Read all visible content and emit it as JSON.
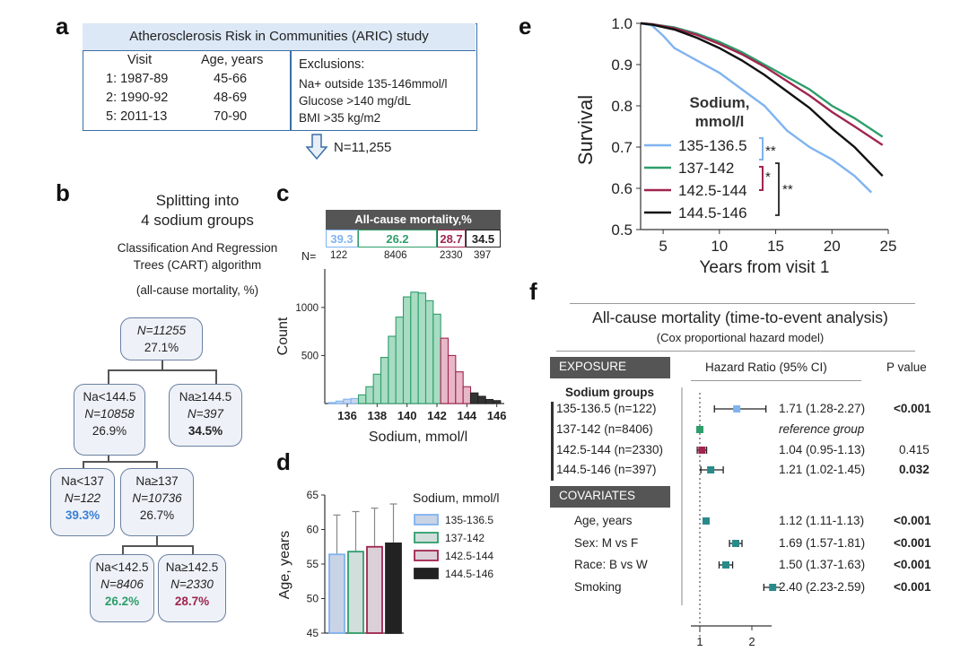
{
  "panel_a": {
    "label": "a",
    "title": "Atherosclerosis Risk in Communities (ARIC) study",
    "visit_header": "Visit",
    "age_header": "Age, years",
    "visits": [
      {
        "visit": "1: 1987-89",
        "age": "45-66"
      },
      {
        "visit": "2: 1990-92",
        "age": "48-69"
      },
      {
        "visit": "5: 2011-13",
        "age": "70-90"
      }
    ],
    "exclusions_header": "Exclusions:",
    "exclusions": [
      "Na+ outside 135-146mmol/l",
      "Glucose >140 mg/dL",
      "BMI >35 kg/m2"
    ],
    "n_total": "N=11,255"
  },
  "panel_b": {
    "label": "b",
    "title_line1": "Splitting into",
    "title_line2": "4 sodium groups",
    "algo_line1": "Classification And Regression",
    "algo_line2": "Trees  (CART) algorithm",
    "algo_line3": "(all-cause mortality, %)",
    "nodes": {
      "root": {
        "n": "N=11255",
        "pct": "27.1%"
      },
      "lt1445": {
        "cond": "Na<144.5",
        "n": "N=10858",
        "pct": "26.9%"
      },
      "ge1445": {
        "cond": "Na≥144.5",
        "n": "N=397",
        "pct": "34.5%"
      },
      "lt137": {
        "cond": "Na<137",
        "n": "N=122",
        "pct": "39.3%"
      },
      "ge137": {
        "cond": "Na≥137",
        "n": "N=10736",
        "pct": "26.7%"
      },
      "lt1425": {
        "cond": "Na<142.5",
        "n": "N=8406",
        "pct": "26.2%"
      },
      "ge1425": {
        "cond": "Na≥142.5",
        "n": "N=2330",
        "pct": "28.7%"
      }
    }
  },
  "panel_c": {
    "label": "c",
    "mortality_header": "All-cause mortality,%",
    "mortality": [
      "39.3",
      "26.2",
      "28.7",
      "34.5"
    ],
    "n_label": "N=",
    "n_values": [
      "122",
      "8406",
      "2330",
      "397"
    ],
    "colors": [
      "#7fb3f0",
      "#2e9e6b",
      "#a0254f",
      "#222222"
    ]
  },
  "panel_d": {
    "label": "d"
  },
  "panel_e": {
    "label": "e",
    "legend_title_line1": "Sodium,",
    "legend_title_line2": "mmol/l",
    "sig1": "**",
    "sig2": "*",
    "sig3": "**"
  },
  "panel_f": {
    "label": "f",
    "title": "All-cause mortality (time-to-event analysis)",
    "subtitle": "(Cox proportional hazard model)",
    "exposure_label": "EXPOSURE",
    "hr_header": "Hazard Ratio (95% CI)",
    "p_header": "P value",
    "sodium_groups_label": "Sodium groups",
    "covariates_label": "COVARIATES",
    "rows": [
      {
        "name": "135-136.5 (n=122)",
        "hr_text": "1.71 (1.28-2.27)",
        "p": "<0.001",
        "hr": 1.71,
        "lo": 1.28,
        "hi": 2.27,
        "color": "#7fb3f0"
      },
      {
        "name": "137-142 (n=8406)",
        "hr_text": "reference group",
        "p": "",
        "hr": 1.0,
        "lo": 1.0,
        "hi": 1.0,
        "color": "#2e9e6b"
      },
      {
        "name": "142.5-144 (n=2330)",
        "hr_text": "1.04 (0.95-1.13)",
        "p": "0.415",
        "hr": 1.04,
        "lo": 0.95,
        "hi": 1.13,
        "color": "#a0254f"
      },
      {
        "name": "144.5-146 (n=397)",
        "hr_text": "1.21 (1.02-1.45)",
        "p": "0.032",
        "hr": 1.21,
        "lo": 1.02,
        "hi": 1.45,
        "color": "#2a8a8a"
      },
      {
        "name": "Age, years",
        "hr_text": "1.12 (1.11-1.13)",
        "p": "<0.001",
        "hr": 1.12,
        "lo": 1.11,
        "hi": 1.13,
        "color": "#2a8a8a"
      },
      {
        "name": "Sex: M vs F",
        "hr_text": "1.69 (1.57-1.81)",
        "p": "<0.001",
        "hr": 1.69,
        "lo": 1.57,
        "hi": 1.81,
        "color": "#2a8a8a"
      },
      {
        "name": "Race: B vs W",
        "hr_text": "1.50 (1.37-1.63)",
        "p": "<0.001",
        "hr": 1.5,
        "lo": 1.37,
        "hi": 1.63,
        "color": "#2a8a8a"
      },
      {
        "name": "Smoking",
        "hr_text": "2.40 (2.23-2.59)",
        "p": "<0.001",
        "hr": 2.4,
        "lo": 2.23,
        "hi": 2.59,
        "color": "#2a8a8a"
      }
    ]
  },
  "chart_data": [
    {
      "id": "histogram",
      "type": "bar",
      "xlabel": "Sodium, mmol/l",
      "ylabel": "Count",
      "xlim": [
        134.5,
        146.5
      ],
      "ylim": [
        0,
        1400
      ],
      "x_ticks": [
        "136",
        "138",
        "140",
        "142",
        "144",
        "146"
      ],
      "y_ticks": [
        "500",
        "1000"
      ],
      "bin_width": 0.5,
      "bins": [
        135,
        135.5,
        136,
        136.5,
        137,
        137.5,
        138,
        138.5,
        139,
        139.5,
        140,
        140.5,
        141,
        141.5,
        142,
        142.5,
        143,
        143.5,
        144,
        144.5,
        145,
        145.5,
        146
      ],
      "values": [
        10,
        25,
        45,
        52,
        90,
        175,
        305,
        480,
        700,
        900,
        1110,
        1160,
        1150,
        1070,
        930,
        680,
        500,
        330,
        175,
        110,
        75,
        42,
        30
      ],
      "group": [
        0,
        0,
        0,
        0,
        1,
        1,
        1,
        1,
        1,
        1,
        1,
        1,
        1,
        1,
        1,
        2,
        2,
        2,
        2,
        3,
        3,
        3,
        3
      ]
    },
    {
      "id": "age_bars",
      "type": "bar",
      "ylabel": "Age, years",
      "ylim": [
        45,
        65
      ],
      "y_ticks": [
        "45",
        "50",
        "55",
        "60",
        "65"
      ],
      "legend_title": "Sodium, mmol/l",
      "categories": [
        "135-136.5",
        "137-142",
        "142.5-144",
        "144.5-146"
      ],
      "values": [
        56.4,
        56.8,
        57.5,
        58.0
      ],
      "errors": [
        5.7,
        5.8,
        5.6,
        5.7
      ],
      "fill_colors": [
        "#c9d3e6",
        "#d2dedb",
        "#dccfd8",
        "#222222"
      ],
      "edge_colors": [
        "#7fb3f0",
        "#2e9e6b",
        "#a0254f",
        "#222222"
      ]
    },
    {
      "id": "survival",
      "type": "line",
      "xlabel": "Years from visit 1",
      "ylabel": "Survival",
      "xlim": [
        3,
        25
      ],
      "ylim": [
        0.5,
        1.0
      ],
      "x_ticks": [
        "5",
        "10",
        "15",
        "20",
        "25"
      ],
      "y_ticks": [
        "0.5",
        "0.6",
        "0.7",
        "0.8",
        "0.9",
        "1.0"
      ],
      "series": [
        {
          "name": "135-136.5",
          "color": "#7fb3f0",
          "x": [
            3,
            4,
            5,
            6,
            8,
            10,
            12,
            14,
            16,
            18,
            20,
            22,
            23.5
          ],
          "y": [
            1.0,
            0.995,
            0.97,
            0.94,
            0.91,
            0.88,
            0.84,
            0.8,
            0.74,
            0.7,
            0.67,
            0.63,
            0.59
          ]
        },
        {
          "name": "137-142",
          "color": "#2e9e6b",
          "x": [
            3,
            4,
            6,
            8,
            10,
            12,
            14,
            16,
            18,
            20,
            22,
            24.5
          ],
          "y": [
            1.0,
            0.998,
            0.99,
            0.975,
            0.955,
            0.93,
            0.9,
            0.87,
            0.84,
            0.8,
            0.77,
            0.725
          ]
        },
        {
          "name": "142.5-144",
          "color": "#a0254f",
          "x": [
            3,
            4,
            6,
            8,
            10,
            12,
            14,
            16,
            18,
            20,
            22,
            24.5
          ],
          "y": [
            1.0,
            0.998,
            0.988,
            0.972,
            0.95,
            0.925,
            0.895,
            0.86,
            0.825,
            0.785,
            0.75,
            0.705
          ]
        },
        {
          "name": "144.5-146",
          "color": "#111111",
          "x": [
            3,
            4,
            6,
            8,
            10,
            12,
            14,
            16,
            18,
            20,
            22,
            24.5
          ],
          "y": [
            1.0,
            0.997,
            0.985,
            0.965,
            0.94,
            0.91,
            0.875,
            0.835,
            0.795,
            0.745,
            0.7,
            0.63
          ]
        }
      ]
    },
    {
      "id": "forest",
      "type": "scatter",
      "xlim": [
        0.7,
        2.8
      ],
      "x_ticks": [
        "1",
        "2"
      ],
      "reference_x": 1
    }
  ]
}
